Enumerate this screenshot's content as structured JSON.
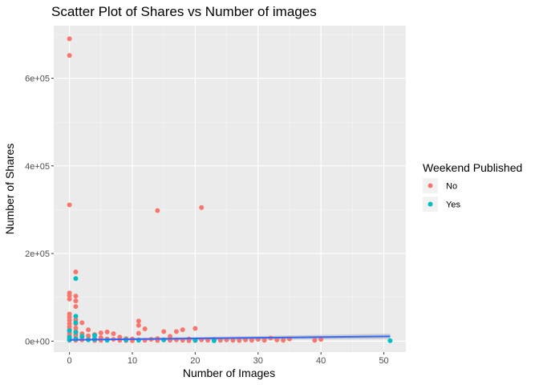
{
  "chart_data": {
    "type": "scatter",
    "title": "Scatter Plot of Shares vs Number of images",
    "xlabel": "Number of Images",
    "ylabel": "Number of Shares",
    "xlim": [
      -2.5,
      53.5
    ],
    "ylim": [
      -25000,
      720000
    ],
    "x_ticks": [
      0,
      10,
      20,
      30,
      40,
      50
    ],
    "x_tick_labels": [
      "0",
      "10",
      "20",
      "30",
      "40",
      "50"
    ],
    "y_ticks": [
      0,
      200000,
      400000,
      600000
    ],
    "y_tick_labels": [
      "0e+00",
      "2e+05",
      "4e+05",
      "6e+05"
    ],
    "grid": true,
    "legend": {
      "title": "Weekend Published",
      "position": "right",
      "entries": [
        "No",
        "Yes"
      ]
    },
    "series": [
      {
        "name": "No",
        "color": "#F8766D",
        "points": [
          [
            0,
            690000
          ],
          [
            0,
            652000
          ],
          [
            0,
            311000
          ],
          [
            0,
            110000
          ],
          [
            0,
            104000
          ],
          [
            0,
            96000
          ],
          [
            0,
            62000
          ],
          [
            0,
            55000
          ],
          [
            0,
            48000
          ],
          [
            0,
            40000
          ],
          [
            0,
            33000
          ],
          [
            0,
            26000
          ],
          [
            0,
            18000
          ],
          [
            0,
            12000
          ],
          [
            0,
            6000
          ],
          [
            0,
            2000
          ],
          [
            1,
            158000
          ],
          [
            1,
            103000
          ],
          [
            1,
            92000
          ],
          [
            1,
            79000
          ],
          [
            1,
            49000
          ],
          [
            1,
            40000
          ],
          [
            1,
            30000
          ],
          [
            1,
            22000
          ],
          [
            1,
            14000
          ],
          [
            1,
            7000
          ],
          [
            1,
            2000
          ],
          [
            2,
            42000
          ],
          [
            2,
            17000
          ],
          [
            2,
            9000
          ],
          [
            2,
            3000
          ],
          [
            3,
            26000
          ],
          [
            3,
            12000
          ],
          [
            3,
            4000
          ],
          [
            4,
            15000
          ],
          [
            4,
            6000
          ],
          [
            4,
            1500
          ],
          [
            5,
            19000
          ],
          [
            5,
            8000
          ],
          [
            5,
            2000
          ],
          [
            6,
            21000
          ],
          [
            6,
            5000
          ],
          [
            7,
            17000
          ],
          [
            7,
            4000
          ],
          [
            8,
            9000
          ],
          [
            8,
            2000
          ],
          [
            9,
            6000
          ],
          [
            9,
            1500
          ],
          [
            10,
            5000
          ],
          [
            10,
            1000
          ],
          [
            11,
            46000
          ],
          [
            11,
            36000
          ],
          [
            11,
            18000
          ],
          [
            11,
            3000
          ],
          [
            12,
            28000
          ],
          [
            12,
            2000
          ],
          [
            13,
            4000
          ],
          [
            14,
            298000
          ],
          [
            14,
            6000
          ],
          [
            14,
            1500
          ],
          [
            15,
            22000
          ],
          [
            15,
            3000
          ],
          [
            16,
            11000
          ],
          [
            16,
            2000
          ],
          [
            17,
            22000
          ],
          [
            17,
            3000
          ],
          [
            18,
            26000
          ],
          [
            18,
            2000
          ],
          [
            19,
            5000
          ],
          [
            19,
            1000
          ],
          [
            20,
            29000
          ],
          [
            20,
            1500
          ],
          [
            21,
            305000
          ],
          [
            21,
            3000
          ],
          [
            22,
            2000
          ],
          [
            23,
            4000
          ],
          [
            24,
            2000
          ],
          [
            25,
            3000
          ],
          [
            26,
            2000
          ],
          [
            27,
            1500
          ],
          [
            28,
            3000
          ],
          [
            29,
            2000
          ],
          [
            30,
            4000
          ],
          [
            31,
            2000
          ],
          [
            32,
            7000
          ],
          [
            33,
            3000
          ],
          [
            34,
            2000
          ],
          [
            35,
            5000
          ],
          [
            39,
            2000
          ],
          [
            40,
            4000
          ]
        ]
      },
      {
        "name": "Yes",
        "color": "#00BFC4",
        "points": [
          [
            0,
            24000
          ],
          [
            0,
            9000
          ],
          [
            0,
            3000
          ],
          [
            1,
            143000
          ],
          [
            1,
            57000
          ],
          [
            1,
            42000
          ],
          [
            1,
            20000
          ],
          [
            1,
            5000
          ],
          [
            2,
            11000
          ],
          [
            3,
            3000
          ],
          [
            4,
            13000
          ],
          [
            4,
            4000
          ],
          [
            6,
            2000
          ],
          [
            9,
            3000
          ],
          [
            11,
            2000
          ],
          [
            15,
            3000
          ],
          [
            20,
            2000
          ],
          [
            23,
            1000
          ],
          [
            51,
            1000
          ]
        ]
      }
    ],
    "trend_line": {
      "color": "#3366FF",
      "x": [
        0,
        51
      ],
      "y": [
        3000,
        11000
      ],
      "se_band": [
        [
          0,
          1500,
          4500
        ],
        [
          51,
          5000,
          17000
        ]
      ]
    }
  }
}
